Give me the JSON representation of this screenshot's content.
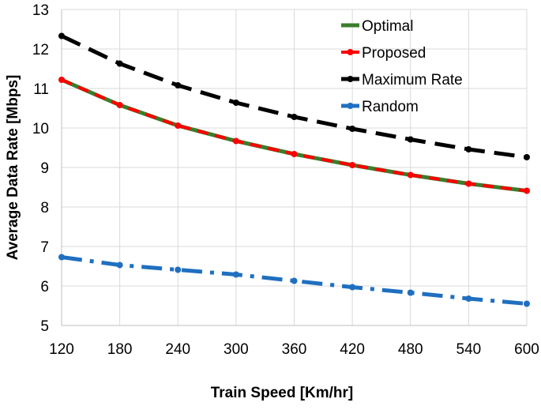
{
  "chart_data": {
    "type": "line",
    "title": "",
    "xlabel": "Train Speed [Km/hr]",
    "ylabel": "Average Data Rate [Mbps]",
    "ylim": [
      5,
      13
    ],
    "yticks": [
      "5",
      "6",
      "7",
      "8",
      "9",
      "10",
      "11",
      "12",
      "13"
    ],
    "categories": [
      "120",
      "180",
      "240",
      "300",
      "360",
      "420",
      "480",
      "540",
      "600"
    ],
    "grid": true,
    "legend_position": "top-right",
    "series": [
      {
        "name": "Optimal",
        "color": "#3a7d2c",
        "style": "solid",
        "marker": "none",
        "values": [
          11.22,
          10.58,
          10.06,
          9.67,
          9.34,
          9.06,
          8.81,
          8.59,
          8.41
        ]
      },
      {
        "name": "Proposed",
        "color": "#ff0000",
        "style": "dashed",
        "marker": "dot",
        "values": [
          11.22,
          10.58,
          10.06,
          9.67,
          9.34,
          9.06,
          8.81,
          8.59,
          8.41
        ]
      },
      {
        "name": "Maximum Rate",
        "color": "#000000",
        "style": "longdash",
        "marker": "dot",
        "values": [
          12.33,
          11.63,
          11.08,
          10.64,
          10.28,
          9.98,
          9.71,
          9.46,
          9.26
        ]
      },
      {
        "name": "Random",
        "color": "#1f6fc0",
        "style": "dashdot",
        "marker": "dot",
        "values": [
          6.73,
          6.53,
          6.41,
          6.29,
          6.13,
          5.97,
          5.83,
          5.68,
          5.55
        ]
      }
    ]
  }
}
